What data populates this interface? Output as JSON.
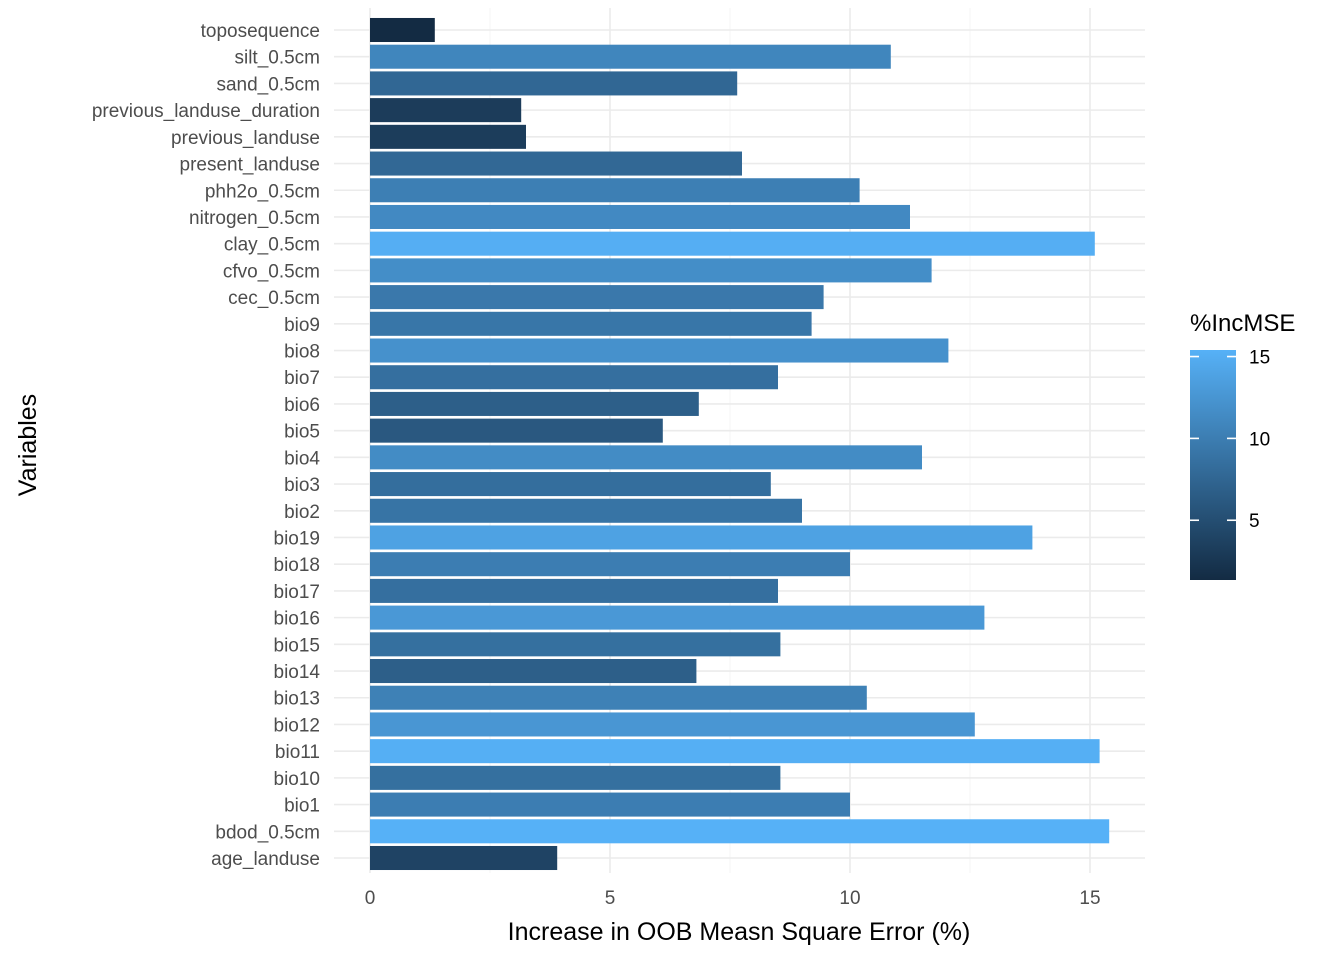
{
  "chart_data": {
    "type": "bar",
    "orientation": "horizontal",
    "title": "",
    "xlabel": "Increase in OOB Measn Square Error (%)",
    "ylabel": "Variables",
    "xlim": [
      0,
      16
    ],
    "x_ticks": [
      0,
      5,
      10,
      15
    ],
    "grid": true,
    "categories": [
      "age_landuse",
      "bdod_0.5cm",
      "bio1",
      "bio10",
      "bio11",
      "bio12",
      "bio13",
      "bio14",
      "bio15",
      "bio16",
      "bio17",
      "bio18",
      "bio19",
      "bio2",
      "bio3",
      "bio4",
      "bio5",
      "bio6",
      "bio7",
      "bio8",
      "bio9",
      "cec_0.5cm",
      "cfvo_0.5cm",
      "clay_0.5cm",
      "nitrogen_0.5cm",
      "phh2o_0.5cm",
      "present_landuse",
      "previous_landuse",
      "previous_landuse_duration",
      "sand_0.5cm",
      "silt_0.5cm",
      "toposequence"
    ],
    "values": [
      3.9,
      15.4,
      10.0,
      8.55,
      15.2,
      12.6,
      10.35,
      6.8,
      8.55,
      12.8,
      8.5,
      10.0,
      13.8,
      9.0,
      8.35,
      11.5,
      6.1,
      6.85,
      8.5,
      12.05,
      9.2,
      9.45,
      11.7,
      15.1,
      11.25,
      10.2,
      7.75,
      3.25,
      3.15,
      7.65,
      10.85,
      1.35
    ],
    "color_scale": {
      "name": "%IncMSE",
      "low_color": "#132B43",
      "high_color": "#56B1F7",
      "domain": [
        1.35,
        15.4
      ],
      "ticks": [
        5,
        10,
        15
      ]
    },
    "legend_position": "right"
  }
}
